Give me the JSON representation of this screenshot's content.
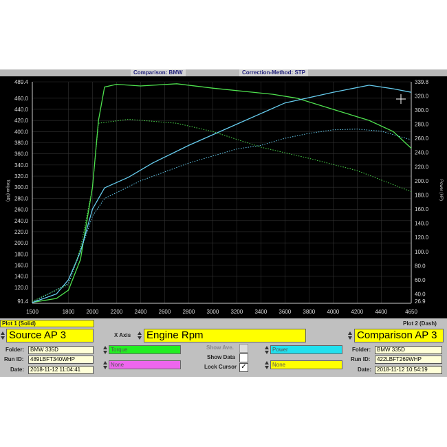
{
  "header": {
    "comparison": "Comparison: BMW",
    "correction": "Correction-Method: STP"
  },
  "chart_data": {
    "type": "line",
    "xlim": [
      1500,
      4650
    ],
    "ylim_left": [
      91.4,
      489.4
    ],
    "ylim_right": [
      26.9,
      339.8
    ],
    "ylabel_left": "Torque (lbft)",
    "ylabel_right": "Power (HP)",
    "x_ticks": [
      "1500",
      "1800",
      "2000",
      "2200",
      "2400",
      "2600",
      "2800",
      "3000",
      "3200",
      "3400",
      "3600",
      "3800",
      "4000",
      "4200",
      "4400",
      "4650"
    ],
    "y_ticks_left": [
      "489.4",
      "460.0",
      "440.0",
      "420.0",
      "400.0",
      "380.0",
      "360.0",
      "340.0",
      "320.0",
      "300.0",
      "280.0",
      "260.0",
      "240.0",
      "220.0",
      "200.0",
      "180.0",
      "160.0",
      "140.0",
      "120.0",
      "91.4"
    ],
    "y_ticks_right": [
      "339.8",
      "320.0",
      "300.0",
      "280.0",
      "260.0",
      "240.0",
      "220.0",
      "200.0",
      "180.0",
      "160.0",
      "140.0",
      "120.0",
      "100.0",
      "80.0",
      "60.0",
      "40.0",
      "26.9"
    ],
    "grid": true,
    "series": [
      {
        "name": "Torque",
        "plot": "solid",
        "axis": "left",
        "color": "#4ee04e",
        "x": [
          1500,
          1700,
          1800,
          1900,
          2000,
          2050,
          2100,
          2200,
          2400,
          2700,
          3000,
          3500,
          3700,
          4000,
          4300,
          4500,
          4650
        ],
        "y": [
          93,
          100,
          115,
          170,
          300,
          420,
          480,
          485,
          482,
          486,
          478,
          467,
          460,
          440,
          420,
          400,
          370
        ]
      },
      {
        "name": "Power",
        "plot": "solid",
        "axis": "right",
        "color": "#66ccee",
        "x": [
          1500,
          1700,
          1800,
          1900,
          2000,
          2100,
          2300,
          2500,
          2800,
          3200,
          3600,
          4000,
          4300,
          4500,
          4650
        ],
        "y": [
          28,
          40,
          60,
          100,
          160,
          190,
          205,
          225,
          250,
          280,
          310,
          325,
          335,
          330,
          325
        ]
      },
      {
        "name": "Torque",
        "plot": "dash",
        "axis": "left",
        "color": "#4ee04e",
        "x": [
          1500,
          1800,
          1900,
          2000,
          2050,
          2300,
          2700,
          3000,
          3400,
          3800,
          4200,
          4650
        ],
        "y": [
          95,
          125,
          190,
          300,
          415,
          422,
          415,
          400,
          372,
          352,
          330,
          292
        ]
      },
      {
        "name": "Power",
        "plot": "dash",
        "axis": "right",
        "color": "#66ccee",
        "x": [
          1500,
          1800,
          1900,
          2000,
          2100,
          2400,
          2800,
          3200,
          3400,
          3600,
          3800,
          4000,
          4200,
          4400,
          4650
        ],
        "y": [
          28,
          55,
          100,
          150,
          175,
          200,
          225,
          245,
          250,
          260,
          267,
          272,
          273,
          270,
          258
        ]
      }
    ]
  },
  "panel": {
    "plot1_title": "Plot 1 (Solid)",
    "plot2_title": "Plot 2 (Dash)",
    "source": "Source AP 3",
    "comparison": "Comparison AP 3",
    "xaxis_label": "X Axis",
    "xaxis_value": "Engine Rpm",
    "folder_label": "Folder:",
    "runid_label": "Run ID:",
    "date_label": "Date:",
    "folder1": "BMW 335D",
    "runid1": "489LBFT340WHP",
    "date1": "2018-11-12 11:04:41",
    "folder2": "BMW 335D",
    "runid2": "422LBFT269WHP",
    "date2": "2018-11-12 10:54:19",
    "sel1": "Torque",
    "sel2": "None",
    "sel3": "Power",
    "sel4": "None",
    "show_ave": "Show Ave.",
    "show_data": "Show Data",
    "lock_cursor": "Lock Cursor",
    "lock_checked": true,
    "colors": {
      "torque": "#22ee22",
      "none1": "#ee66ee",
      "power": "#22e0ee",
      "none2": "#ffff00"
    }
  }
}
